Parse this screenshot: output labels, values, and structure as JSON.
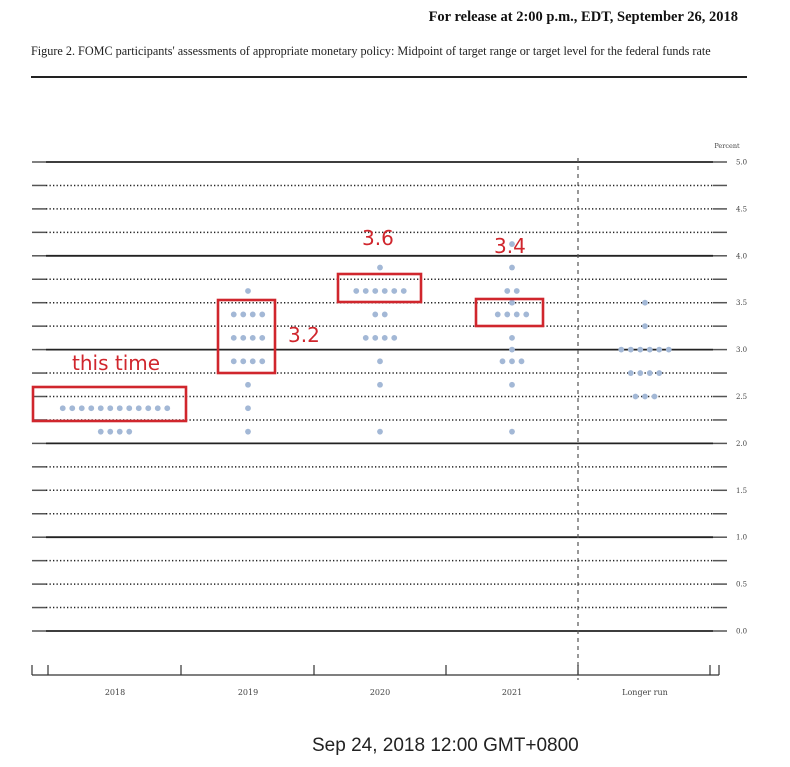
{
  "header": {
    "release_note": "For release at 2:00 p.m., EDT, September 26, 2018",
    "caption": "Figure 2. FOMC participants' assessments of appropriate monetary policy: Midpoint of target range or target level for the federal funds rate"
  },
  "chart_data": {
    "type": "scatter",
    "subtype": "dot-plot",
    "ylabel": "Percent",
    "ylim": [
      0,
      5
    ],
    "y_ticks": [
      "0.0",
      "0.5",
      "1.0",
      "1.5",
      "2.0",
      "2.5",
      "3.0",
      "3.5",
      "4.0",
      "4.5",
      "5.0"
    ],
    "gridlines": "solid at whole numbers, dotted every 0.25",
    "categories": [
      "2018",
      "2019",
      "2020",
      "2021",
      "Longer run"
    ],
    "dot_color": "#a3b8d6",
    "dots": [
      {
        "category": "2018",
        "levels": [
          {
            "rate": 2.375,
            "count": 12
          },
          {
            "rate": 2.125,
            "count": 4
          }
        ]
      },
      {
        "category": "2019",
        "levels": [
          {
            "rate": 3.625,
            "count": 1
          },
          {
            "rate": 3.375,
            "count": 4
          },
          {
            "rate": 3.125,
            "count": 4
          },
          {
            "rate": 2.875,
            "count": 4
          },
          {
            "rate": 2.625,
            "count": 1
          },
          {
            "rate": 2.375,
            "count": 1
          },
          {
            "rate": 2.125,
            "count": 1
          }
        ]
      },
      {
        "category": "2020",
        "levels": [
          {
            "rate": 3.875,
            "count": 1
          },
          {
            "rate": 3.625,
            "count": 6
          },
          {
            "rate": 3.375,
            "count": 2
          },
          {
            "rate": 3.125,
            "count": 4
          },
          {
            "rate": 2.875,
            "count": 1
          },
          {
            "rate": 2.625,
            "count": 1
          },
          {
            "rate": 2.125,
            "count": 1
          }
        ]
      },
      {
        "category": "2021",
        "levels": [
          {
            "rate": 4.125,
            "count": 1
          },
          {
            "rate": 3.875,
            "count": 1
          },
          {
            "rate": 3.625,
            "count": 2
          },
          {
            "rate": 3.5,
            "count": 1
          },
          {
            "rate": 3.375,
            "count": 4
          },
          {
            "rate": 3.125,
            "count": 1
          },
          {
            "rate": 3.0,
            "count": 1
          },
          {
            "rate": 2.875,
            "count": 3
          },
          {
            "rate": 2.625,
            "count": 1
          },
          {
            "rate": 2.125,
            "count": 1
          }
        ]
      },
      {
        "category": "Longer run",
        "levels": [
          {
            "rate": 3.5,
            "count": 1
          },
          {
            "rate": 3.25,
            "count": 1
          },
          {
            "rate": 3.0,
            "count": 6
          },
          {
            "rate": 2.75,
            "count": 4
          },
          {
            "rate": 2.5,
            "count": 3
          }
        ]
      }
    ],
    "annotations": {
      "color": "#d0262d",
      "items": [
        {
          "label": "this time",
          "category": "2018"
        },
        {
          "label": "3.2",
          "category": "2019"
        },
        {
          "label": "3.6",
          "category": "2020"
        },
        {
          "label": "3.4",
          "category": "2021"
        }
      ]
    }
  },
  "footer": {
    "timestamp": "Sep 24, 2018 12:00 GMT+0800"
  }
}
